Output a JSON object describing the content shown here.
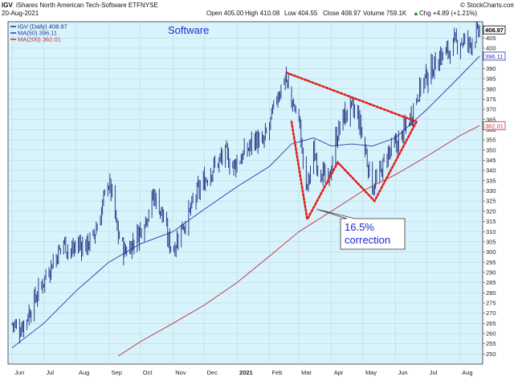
{
  "header": {
    "symbol": "IGV",
    "name": "iShares North American Tech-Software ETF",
    "exchange": "NYSE",
    "date": "20-Aug-2021",
    "open": "Open 405.00",
    "high": "High 410.08",
    "low": "Low 404.55",
    "close": "Close 408.97",
    "volume": "Volume 759.1K",
    "chg": "Chg +4.89 (+1.21%)",
    "chg_arrow": "▲",
    "source": "© StockCharts.com"
  },
  "legend": [
    {
      "label": "IGV (Daily) 408.97",
      "color": "#1c2a80"
    },
    {
      "label": "MA(50) 396.11",
      "color": "#2b3aa8"
    },
    {
      "label": "MA(200) 362.01",
      "color": "#c0303a"
    }
  ],
  "colors": {
    "plot_bg": "#d8f3fb",
    "price": "#1c2a80",
    "ma50": "#2b3aa8",
    "ma200": "#c0303a",
    "pattern": "#e0201a",
    "annotation_text": "#1a2bd0"
  },
  "chart_data": {
    "type": "ohlc",
    "title": "Software",
    "ylim": [
      245,
      413
    ],
    "y_ticks": [
      250,
      255,
      260,
      265,
      270,
      275,
      280,
      285,
      290,
      295,
      300,
      305,
      310,
      315,
      320,
      325,
      330,
      335,
      340,
      345,
      350,
      355,
      360,
      365,
      370,
      375,
      380,
      385,
      390,
      395,
      400,
      405
    ],
    "x_tick_labels": [
      "Jun",
      "Jul",
      "Aug",
      "Sep",
      "Oct",
      "Nov",
      "Dec",
      "2021",
      "Feb",
      "Mar",
      "Apr",
      "May",
      "Jun",
      "Jul",
      "Aug"
    ],
    "x_tick_bold": "2021",
    "last_value_labels": [
      {
        "text": "408.97",
        "value": 408.97,
        "kind": "price"
      },
      {
        "text": "396.11",
        "value": 396.11,
        "kind": "ma50"
      },
      {
        "text": "362.01",
        "value": 362.01,
        "kind": "ma200"
      }
    ],
    "series": [
      {
        "name": "IGV (Daily)",
        "kind": "price",
        "points": [
          [
            "2020-06-01",
            265
          ],
          [
            "2020-06-08",
            262
          ],
          [
            "2020-06-15",
            268
          ],
          [
            "2020-06-22",
            276
          ],
          [
            "2020-06-29",
            284
          ],
          [
            "2020-07-06",
            292
          ],
          [
            "2020-07-13",
            298
          ],
          [
            "2020-07-20",
            305
          ],
          [
            "2020-07-27",
            300
          ],
          [
            "2020-08-03",
            304
          ],
          [
            "2020-08-10",
            303
          ],
          [
            "2020-08-17",
            307
          ],
          [
            "2020-08-24",
            318
          ],
          [
            "2020-08-31",
            335
          ],
          [
            "2020-09-04",
            328
          ],
          [
            "2020-09-09",
            310
          ],
          [
            "2020-09-16",
            300
          ],
          [
            "2020-09-23",
            304
          ],
          [
            "2020-09-30",
            310
          ],
          [
            "2020-10-07",
            318
          ],
          [
            "2020-10-14",
            328
          ],
          [
            "2020-10-21",
            320
          ],
          [
            "2020-10-28",
            305
          ],
          [
            "2020-11-02",
            302
          ],
          [
            "2020-11-09",
            312
          ],
          [
            "2020-11-16",
            318
          ],
          [
            "2020-11-23",
            328
          ],
          [
            "2020-11-30",
            334
          ],
          [
            "2020-12-07",
            340
          ],
          [
            "2020-12-14",
            344
          ],
          [
            "2020-12-21",
            348
          ],
          [
            "2020-12-28",
            342
          ],
          [
            "2021-01-04",
            346
          ],
          [
            "2021-01-11",
            350
          ],
          [
            "2021-01-18",
            356
          ],
          [
            "2021-01-25",
            352
          ],
          [
            "2021-02-01",
            362
          ],
          [
            "2021-02-08",
            376
          ],
          [
            "2021-02-16",
            386
          ],
          [
            "2021-02-22",
            374
          ],
          [
            "2021-03-01",
            365
          ],
          [
            "2021-03-08",
            330
          ],
          [
            "2021-03-15",
            348
          ],
          [
            "2021-03-22",
            340
          ],
          [
            "2021-03-29",
            333
          ],
          [
            "2021-04-05",
            355
          ],
          [
            "2021-04-12",
            366
          ],
          [
            "2021-04-19",
            370
          ],
          [
            "2021-04-26",
            367
          ],
          [
            "2021-05-03",
            350
          ],
          [
            "2021-05-10",
            332
          ],
          [
            "2021-05-17",
            338
          ],
          [
            "2021-05-24",
            348
          ],
          [
            "2021-06-01",
            352
          ],
          [
            "2021-06-08",
            358
          ],
          [
            "2021-06-15",
            366
          ],
          [
            "2021-06-22",
            378
          ],
          [
            "2021-06-29",
            385
          ],
          [
            "2021-07-06",
            390
          ],
          [
            "2021-07-13",
            396
          ],
          [
            "2021-07-20",
            398
          ],
          [
            "2021-07-27",
            402
          ],
          [
            "2021-08-03",
            404
          ],
          [
            "2021-08-10",
            402
          ],
          [
            "2021-08-16",
            406
          ],
          [
            "2021-08-20",
            408.97
          ]
        ]
      },
      {
        "name": "MA(50)",
        "kind": "ma50",
        "points": [
          [
            "2020-06-01",
            253
          ],
          [
            "2020-07-01",
            265
          ],
          [
            "2020-08-01",
            281
          ],
          [
            "2020-09-01",
            295
          ],
          [
            "2020-10-01",
            304
          ],
          [
            "2020-11-01",
            310
          ],
          [
            "2020-12-01",
            321
          ],
          [
            "2021-01-01",
            332
          ],
          [
            "2021-02-01",
            342
          ],
          [
            "2021-02-22",
            353
          ],
          [
            "2021-03-15",
            356
          ],
          [
            "2021-04-01",
            352
          ],
          [
            "2021-04-20",
            353
          ],
          [
            "2021-05-10",
            352
          ],
          [
            "2021-06-01",
            356
          ],
          [
            "2021-07-01",
            370
          ],
          [
            "2021-08-01",
            386
          ],
          [
            "2021-08-20",
            396.11
          ]
        ]
      },
      {
        "name": "MA(200)",
        "kind": "ma200",
        "points": [
          [
            "2020-09-10",
            249
          ],
          [
            "2020-10-01",
            256
          ],
          [
            "2020-11-01",
            265
          ],
          [
            "2020-12-01",
            274
          ],
          [
            "2021-01-01",
            285
          ],
          [
            "2021-02-01",
            298
          ],
          [
            "2021-03-01",
            310
          ],
          [
            "2021-04-01",
            320
          ],
          [
            "2021-05-01",
            330
          ],
          [
            "2021-06-01",
            338
          ],
          [
            "2021-07-01",
            347
          ],
          [
            "2021-08-01",
            357
          ],
          [
            "2021-08-20",
            362.01
          ]
        ]
      }
    ],
    "pattern_lines": [
      {
        "name": "upper-trendline",
        "points": [
          [
            "2021-02-17",
            388
          ],
          [
            "2021-06-21",
            364
          ]
        ]
      },
      {
        "name": "zigzag-pattern",
        "points": [
          [
            "2021-02-22",
            364
          ],
          [
            "2021-03-09",
            316
          ],
          [
            "2021-04-07",
            344
          ],
          [
            "2021-05-12",
            325
          ],
          [
            "2021-06-21",
            364
          ]
        ]
      }
    ],
    "annotations": [
      {
        "lines": [
          "16.5%",
          "correction"
        ],
        "anchor_date": "2021-03-18",
        "anchor_value": 321
      }
    ]
  }
}
